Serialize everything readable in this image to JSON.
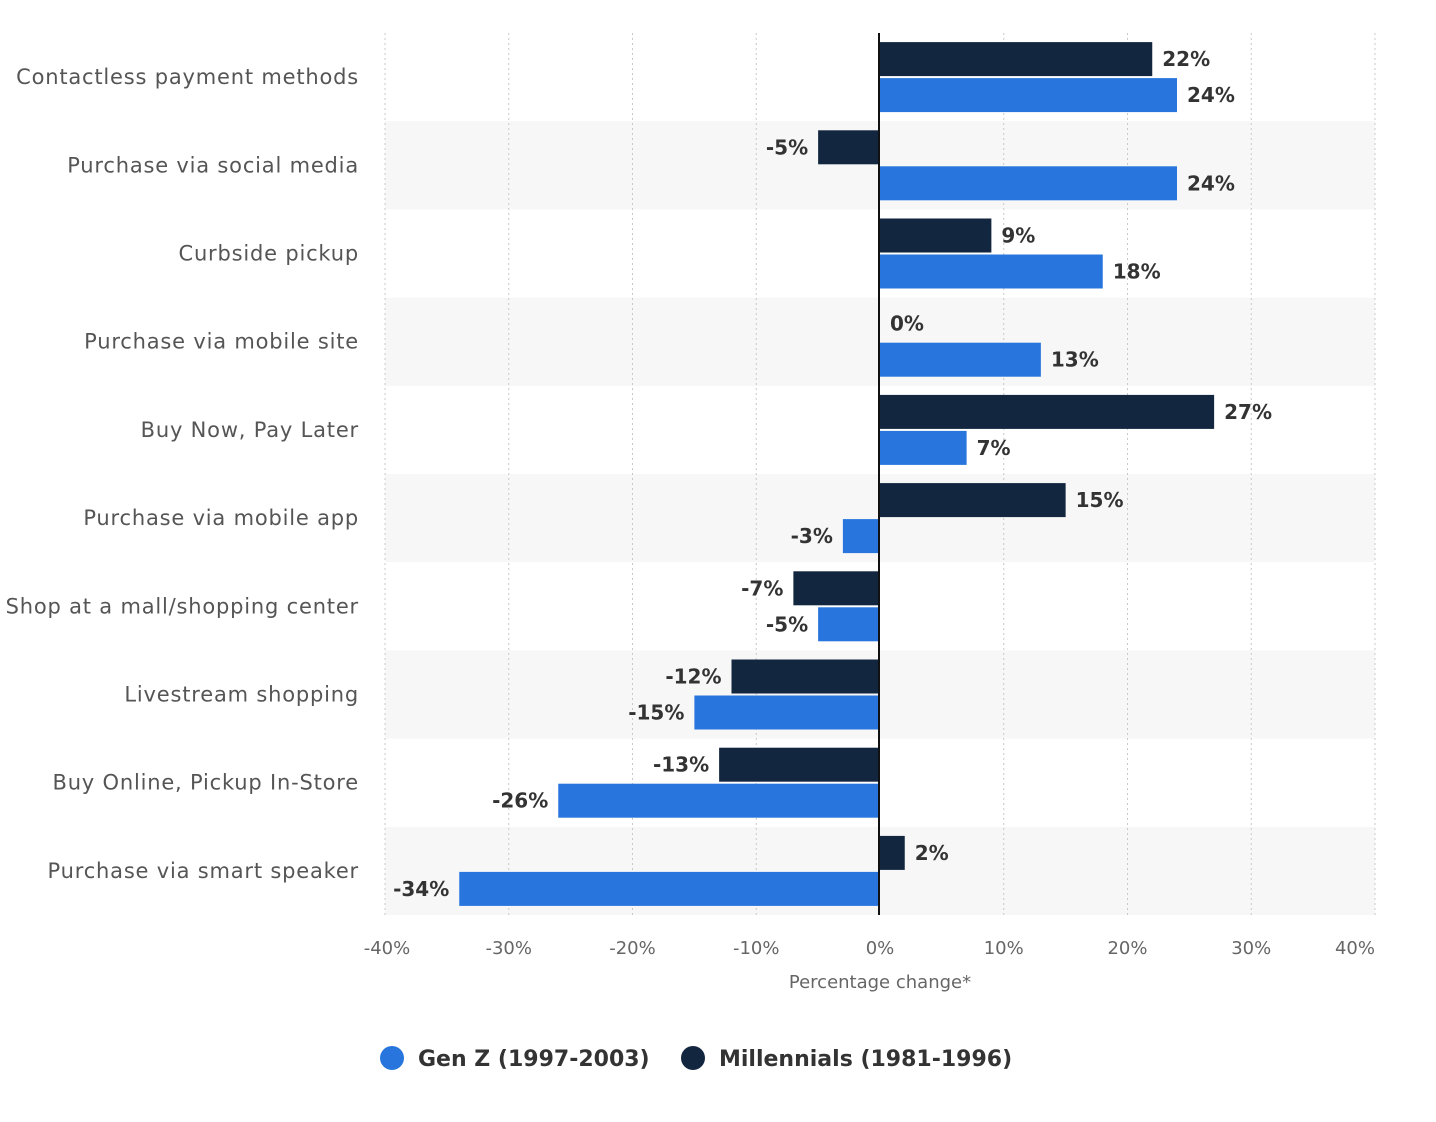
{
  "chart_data": {
    "type": "bar",
    "orientation": "horizontal",
    "categories": [
      "Contactless payment methods",
      "Purchase via social media",
      "Curbside pickup",
      "Purchase via mobile site",
      "Buy Now, Pay Later",
      "Purchase via mobile app",
      "Shop at a mall/shopping center",
      "Livestream shopping",
      "Buy Online, Pickup In-Store",
      "Purchase via smart speaker"
    ],
    "series": [
      {
        "name": "Millennials (1981-1996)",
        "color": "#12263f",
        "values": [
          22,
          -5,
          9,
          0,
          27,
          15,
          -7,
          -12,
          -13,
          2
        ],
        "labels": [
          "22%",
          "-5%",
          "9%",
          "0%",
          "27%",
          "15%",
          "-7%",
          "-12%",
          "-13%",
          "2%"
        ]
      },
      {
        "name": "Gen Z (1997-2003)",
        "color": "#2876dd",
        "values": [
          24,
          24,
          18,
          13,
          7,
          -3,
          -5,
          -15,
          -26,
          -34
        ],
        "labels": [
          "24%",
          "24%",
          "18%",
          "13%",
          "7%",
          "-3%",
          "-5%",
          "-15%",
          "-26%",
          "-34%"
        ]
      }
    ],
    "xlim": [
      -40,
      40
    ],
    "xticks": [
      -40,
      -30,
      -20,
      -10,
      0,
      10,
      20,
      30,
      40
    ],
    "xtick_labels": [
      "-40%",
      "-30%",
      "-20%",
      "-10%",
      "0%",
      "10%",
      "20%",
      "30%",
      "40%"
    ],
    "xlabel": "Percentage change*",
    "ylabel": "",
    "title": "",
    "grid": true,
    "legend": {
      "position": "bottom",
      "entries": [
        {
          "name": "Gen Z (1997-2003)",
          "color": "#2876dd"
        },
        {
          "name": "Millennials (1981-1996)",
          "color": "#12263f"
        }
      ]
    }
  }
}
